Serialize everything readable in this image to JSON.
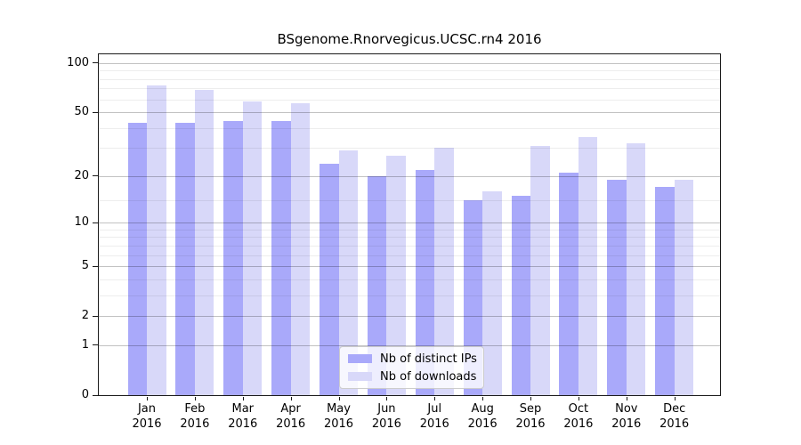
{
  "chart_data": {
    "type": "bar",
    "title": "BSgenome.Rnorvegicus.UCSC.rn4 2016",
    "categories": [
      "Jan",
      "Feb",
      "Mar",
      "Apr",
      "May",
      "Jun",
      "Jul",
      "Aug",
      "Sep",
      "Oct",
      "Nov",
      "Dec"
    ],
    "year": "2016",
    "series": [
      {
        "name": "Nb of distinct IPs",
        "color": "#a9a9fa",
        "values": [
          43,
          43,
          44,
          44,
          24,
          20,
          22,
          14,
          15,
          21,
          19,
          17
        ]
      },
      {
        "name": "Nb of downloads",
        "color": "#d8d8f9",
        "values": [
          73,
          69,
          58,
          57,
          29,
          27,
          30,
          16,
          31,
          35,
          32,
          19
        ]
      }
    ],
    "y_axis": {
      "scale": "log1p",
      "ticks": [
        0,
        1,
        2,
        5,
        10,
        20,
        50,
        100
      ],
      "minor_gridlines": [
        3,
        4,
        6,
        7,
        8,
        9,
        14,
        30,
        40,
        60,
        70,
        80,
        90
      ],
      "top_value": 115
    },
    "legend": {
      "position": "bottom-center",
      "entries": [
        "Nb of distinct IPs",
        "Nb of downloads"
      ]
    },
    "grid": true
  }
}
